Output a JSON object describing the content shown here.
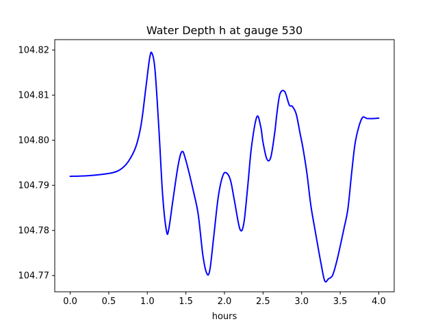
{
  "chart_data": {
    "type": "line",
    "title": "Water Depth h at gauge 530",
    "xlabel": "hours",
    "ylabel": "",
    "xlim": [
      -0.2,
      4.2
    ],
    "ylim": [
      104.7664,
      104.8223
    ],
    "xticks": [
      0.0,
      0.5,
      1.0,
      1.5,
      2.0,
      2.5,
      3.0,
      3.5,
      4.0
    ],
    "xtick_labels": [
      "0.0",
      "0.5",
      "1.0",
      "1.5",
      "2.0",
      "2.5",
      "3.0",
      "3.5",
      "4.0"
    ],
    "yticks": [
      104.77,
      104.78,
      104.79,
      104.8,
      104.81,
      104.82
    ],
    "ytick_labels": [
      "104.77",
      "104.78",
      "104.79",
      "104.80",
      "104.81",
      "104.82"
    ],
    "grid": false,
    "series": [
      {
        "color": "#0000ff",
        "x": [
          0.0,
          0.2,
          0.4,
          0.55,
          0.65,
          0.75,
          0.85,
          0.92,
          0.98,
          1.03,
          1.06,
          1.1,
          1.15,
          1.2,
          1.25,
          1.28,
          1.33,
          1.4,
          1.45,
          1.5,
          1.6,
          1.66,
          1.72,
          1.77,
          1.81,
          1.86,
          1.92,
          1.98,
          2.03,
          2.08,
          2.13,
          2.2,
          2.25,
          2.3,
          2.35,
          2.42,
          2.47,
          2.5,
          2.55,
          2.6,
          2.65,
          2.68,
          2.72,
          2.78,
          2.84,
          2.88,
          2.93,
          2.98,
          3.02,
          3.07,
          3.12,
          3.18,
          3.25,
          3.3,
          3.35,
          3.4,
          3.45,
          3.5,
          3.55,
          3.6,
          3.65,
          3.7,
          3.78,
          3.85,
          3.92,
          4.0
        ],
        "y": [
          104.792,
          104.7921,
          104.7924,
          104.7928,
          104.7935,
          104.7952,
          104.7985,
          104.8035,
          104.8115,
          104.8182,
          104.8193,
          104.8155,
          104.8025,
          104.7875,
          104.7797,
          104.7805,
          104.7865,
          104.7945,
          104.7975,
          104.7955,
          104.7885,
          104.7835,
          104.7745,
          104.7705,
          104.7712,
          104.7785,
          104.7875,
          104.7922,
          104.7927,
          104.791,
          104.7865,
          104.7803,
          104.7815,
          104.7895,
          104.7985,
          104.8052,
          104.803,
          104.7995,
          104.7958,
          104.7962,
          104.8015,
          104.806,
          104.8103,
          104.8108,
          104.8078,
          104.8075,
          104.8058,
          104.8015,
          104.798,
          104.7925,
          104.7855,
          104.7795,
          104.7728,
          104.7688,
          104.7693,
          104.77,
          104.7728,
          104.7765,
          104.7805,
          104.7848,
          104.793,
          104.8,
          104.8048,
          104.8048,
          104.8048,
          104.8049
        ]
      }
    ]
  }
}
